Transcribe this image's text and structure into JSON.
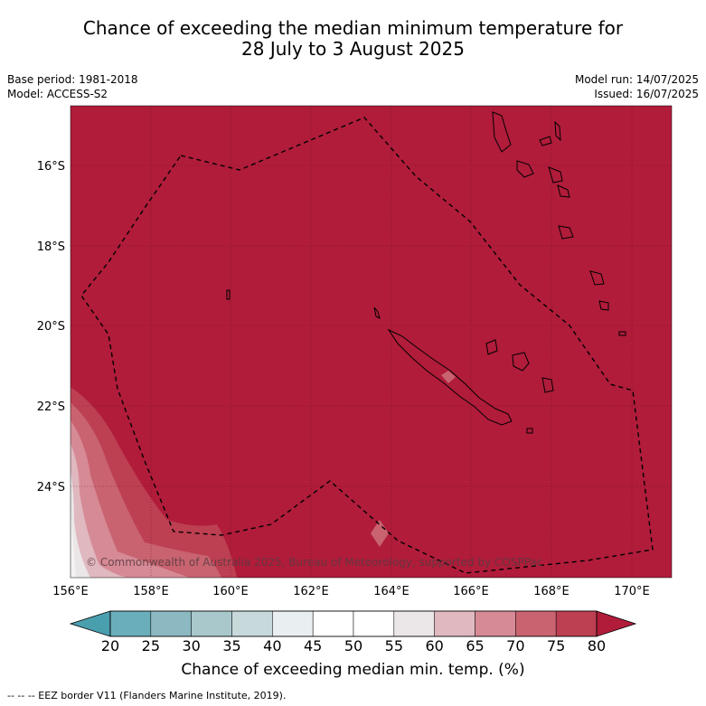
{
  "title": {
    "line1": "Chance of exceeding the median minimum temperature for",
    "line2": "28 July to 3 August 2025"
  },
  "meta": {
    "base_period": "Base period: 1981-2018",
    "model": "Model: ACCESS-S2",
    "model_run": "Model run: 14/07/2025",
    "issued": "Issued: 16/07/2025"
  },
  "map": {
    "lat_labels": [
      "16°S",
      "18°S",
      "20°S",
      "22°S",
      "24°S"
    ],
    "lon_labels": [
      "156°E",
      "158°E",
      "160°E",
      "162°E",
      "164°E",
      "166°E",
      "168°E",
      "170°E"
    ],
    "fill_color": "#b01c3a",
    "copyright": "© Commonwealth of Australia 2025, Bureau of Meteorology, supported by COSPPac"
  },
  "colorbar": {
    "ticks": [
      "20",
      "25",
      "30",
      "35",
      "40",
      "45",
      "50",
      "55",
      "60",
      "65",
      "70",
      "75",
      "80"
    ],
    "colors": [
      "#4a9fae",
      "#6aaebb",
      "#8cb8c2",
      "#a9c8cc",
      "#c8d9db",
      "#e9eff0",
      "#ffffff",
      "#ffffff",
      "#ebe6e7",
      "#e0b8bf",
      "#d68a96",
      "#c8636f",
      "#bd3f52",
      "#b01c3a"
    ],
    "label": "Chance of exceeding median min. temp. (%)"
  },
  "footnote": "--  --  -- EEZ border V11 (Flanders Marine Institute, 2019)."
}
